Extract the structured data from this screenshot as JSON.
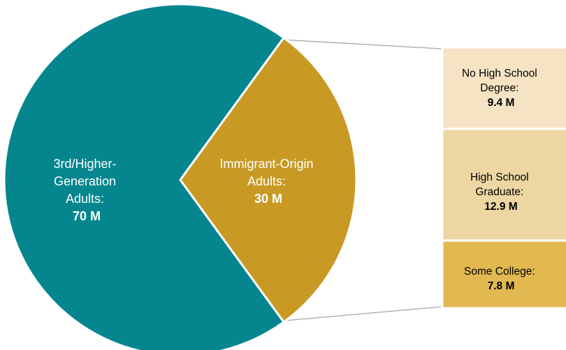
{
  "chart_data": {
    "type": "pie",
    "title": "",
    "slices": [
      {
        "label": "3rd/Higher-Generation Adults:",
        "value": 70,
        "value_label": "70 M",
        "color": "#05868F"
      },
      {
        "label": "Immigrant-Origin Adults:",
        "value": 30,
        "value_label": "30 M",
        "color": "#C89A24"
      }
    ],
    "breakdown": {
      "of": "Immigrant-Origin Adults",
      "type": "stacked-bar",
      "segments": [
        {
          "label": "No High School Degree:",
          "value": 9.4,
          "value_label": "9.4 M",
          "color": "#F5E3C4"
        },
        {
          "label": "High School Graduate:",
          "value": 12.9,
          "value_label": "12.9 M",
          "color": "#EDD6A2"
        },
        {
          "label": "Some College:",
          "value": 7.8,
          "value_label": "7.8 M",
          "color": "#E2B851"
        }
      ]
    },
    "text": {
      "pie_main_lines": [
        "3rd/Higher-",
        "Generation",
        "Adults:"
      ],
      "pie_imm_lines": [
        "Immigrant-Origin",
        "Adults:"
      ],
      "box1_lines": [
        "No High School",
        "Degree:"
      ],
      "box2_lines": [
        "High School",
        "Graduate:"
      ],
      "box3_lines": [
        "Some College:"
      ]
    }
  }
}
